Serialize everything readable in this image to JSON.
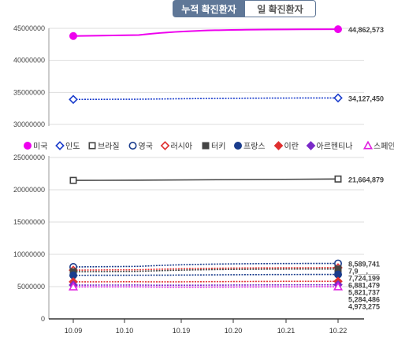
{
  "tabs": [
    {
      "label": "누적 확진환자",
      "active": true
    },
    {
      "label": "일 확진환자",
      "active": false
    }
  ],
  "chart_data": {
    "type": "line",
    "x": [
      "10.09",
      "10.10",
      "10.19",
      "10.20",
      "10.21",
      "10.22"
    ],
    "axis_break": true,
    "y_ticks_upper": [
      "30000000",
      "35000000",
      "40000000",
      "45000000"
    ],
    "y_ticks_lower": [
      "0",
      "5000000",
      "10000000",
      "15000000",
      "20000000",
      "25000000"
    ],
    "legend_placement": "middle-left (between broken axis panels)",
    "series": [
      {
        "name": "미국",
        "color": "#ee00ee",
        "marker": "filled-circle",
        "start": 43800000,
        "end": 44862573,
        "end_label": "44,862,573"
      },
      {
        "name": "인도",
        "color": "#1a3ccc",
        "marker": "open-diamond",
        "start": 33900000,
        "end": 34127450,
        "end_label": "34,127,450"
      },
      {
        "name": "브라질",
        "color": "#444444",
        "marker": "open-square",
        "start": 21450000,
        "end": 21664879,
        "end_label": "21,664,879"
      },
      {
        "name": "영국",
        "color": "#1a3c8c",
        "marker": "open-circle",
        "start": 8050000,
        "end": 8589741,
        "end_label": "8,589,741"
      },
      {
        "name": "러시아",
        "color": "#e03030",
        "marker": "open-diamond",
        "start": 7550000,
        "end": 7930000,
        "end_label": "7,9__,___"
      },
      {
        "name": "터키",
        "color": "#444444",
        "marker": "filled-square",
        "start": 7300000,
        "end": 7724199,
        "end_label": "7,724,199"
      },
      {
        "name": "프랑스",
        "color": "#1a3c8c",
        "marker": "filled-circle",
        "start": 6750000,
        "end": 6881479,
        "end_label": "6,881,479"
      },
      {
        "name": "이란",
        "color": "#e03030",
        "marker": "filled-diamond",
        "start": 5740000,
        "end": 5821737,
        "end_label": "5,821,737"
      },
      {
        "name": "아르헨티나",
        "color": "#7a2ac8",
        "marker": "filled-diamond",
        "start": 5240000,
        "end": 5284486,
        "end_label": "5,284,486"
      },
      {
        "name": "스페인",
        "color": "#e020e0",
        "marker": "open-triangle",
        "start": 4960000,
        "end": 4973275,
        "end_label": "4,973,275"
      }
    ]
  }
}
